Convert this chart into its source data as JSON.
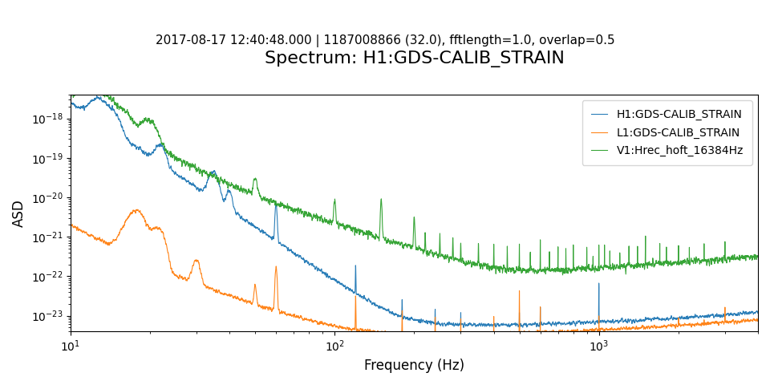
{
  "title": "Spectrum: H1:GDS-CALIB_STRAIN",
  "subtitle": "2017-08-17 12:40:48.000 | 1187008866 (32.0), fftlength=1.0, overlap=0.5",
  "xlabel": "Frequency (Hz)",
  "ylabel": "ASD",
  "legend": [
    "H1:GDS-CALIB_STRAIN",
    "L1:GDS-CALIB_STRAIN",
    "V1:Hrec_hoft_16384Hz"
  ],
  "colors": [
    "#1f77b4",
    "#ff7f0e",
    "#2ca02c"
  ],
  "xlim": [
    10,
    4000
  ],
  "ylim": [
    4e-24,
    4e-18
  ],
  "title_fontsize": 16,
  "subtitle_fontsize": 11,
  "label_fontsize": 12,
  "legend_fontsize": 10
}
